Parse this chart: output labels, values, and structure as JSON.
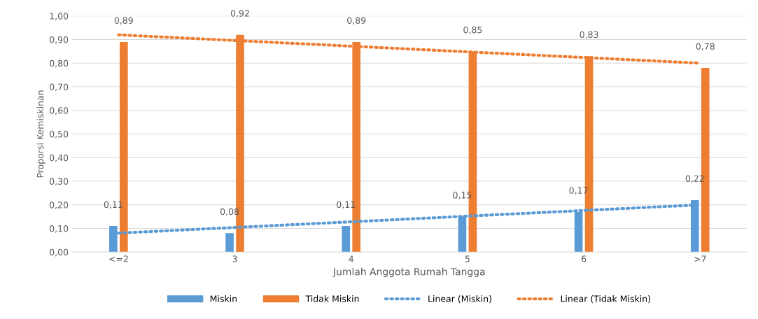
{
  "chart_data": {
    "type": "bar",
    "xlabel": "Jumlah Anggota Rumah Tangga",
    "ylabel": "Proporsi Kemiskinan",
    "categories": [
      "<=2",
      "3",
      "4",
      "5",
      "6",
      ">7"
    ],
    "series": [
      {
        "name": "Miskin",
        "color": "#5b9bd5",
        "values": [
          0.11,
          0.08,
          0.11,
          0.15,
          0.17,
          0.22
        ],
        "value_labels": [
          "0,11",
          "0,08",
          "0,11",
          "0,15",
          "0,17",
          "0,22"
        ]
      },
      {
        "name": "Tidak Miskin",
        "color": "#ed7d31",
        "values": [
          0.89,
          0.92,
          0.89,
          0.85,
          0.83,
          0.78
        ],
        "value_labels": [
          "0,89",
          "0,92",
          "0,89",
          "0,85",
          "0,83",
          "0,78"
        ]
      },
      {
        "name": "Linear (Miskin)",
        "type": "line",
        "line_style": "dotted",
        "color": "#5b9bd5",
        "values": [
          0.08,
          0.104,
          0.128,
          0.152,
          0.176,
          0.2
        ]
      },
      {
        "name": "Linear (Tidak Miskin)",
        "type": "line",
        "line_style": "dotted",
        "color": "#ed7d31",
        "values": [
          0.92,
          0.896,
          0.872,
          0.848,
          0.824,
          0.8
        ]
      }
    ],
    "ylim": [
      0,
      1
    ],
    "yticks": [
      {
        "value": 0,
        "label": "0,00"
      },
      {
        "value": 0.1,
        "label": "0,10"
      },
      {
        "value": 0.2,
        "label": "0,20"
      },
      {
        "value": 0.3,
        "label": "0,30"
      },
      {
        "value": 0.4,
        "label": "0,40"
      },
      {
        "value": 0.5,
        "label": "0,50"
      },
      {
        "value": 0.6,
        "label": "0,60"
      },
      {
        "value": 0.7,
        "label": "0,70"
      },
      {
        "value": 0.8,
        "label": "0,80"
      },
      {
        "value": 0.9,
        "label": "0,90"
      },
      {
        "value": 1,
        "label": "1,00"
      }
    ],
    "grid": "y",
    "legend": "bottom",
    "marker": "none"
  }
}
